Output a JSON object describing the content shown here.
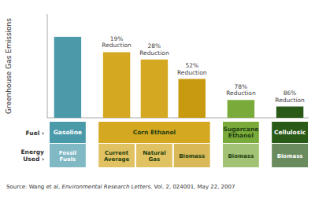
{
  "chart_data": {
    "type": "bar",
    "y_label": "Greenhouse Gas Emissions",
    "categories": [
      "Fossil Fuels",
      "Current\nAverage",
      "Natural\nGas",
      "Biomass",
      "Biomass",
      "Biomass"
    ],
    "fuel_categories": [
      "Gasoline",
      "Corn Ethanol",
      "Corn Ethanol",
      "Corn Ethanol",
      "Sugarcane\nEthanol",
      "Cellulosic"
    ],
    "row_labels": [
      "Fuel ›",
      "Energy\nUsed ›"
    ],
    "values": [
      1.0,
      0.81,
      0.72,
      0.48,
      0.22,
      0.14
    ],
    "colors": [
      "#4a9aaa",
      "#d4a820",
      "#d4a820",
      "#c89a10",
      "#7aaa3a",
      "#2a5a18"
    ],
    "annotations": [
      null,
      "19%\nReduction",
      "28%\nReduction",
      "52%\nReduction",
      "78%\nReduction",
      "86%\nReduction"
    ],
    "ylim": [
      0,
      1.28
    ],
    "tick_labels": false,
    "grid": false,
    "source": [
      "Source: Wang et al, ",
      "Environmental Research Letters",
      ", Vol. 2, 024001, May 22, 2007"
    ]
  }
}
